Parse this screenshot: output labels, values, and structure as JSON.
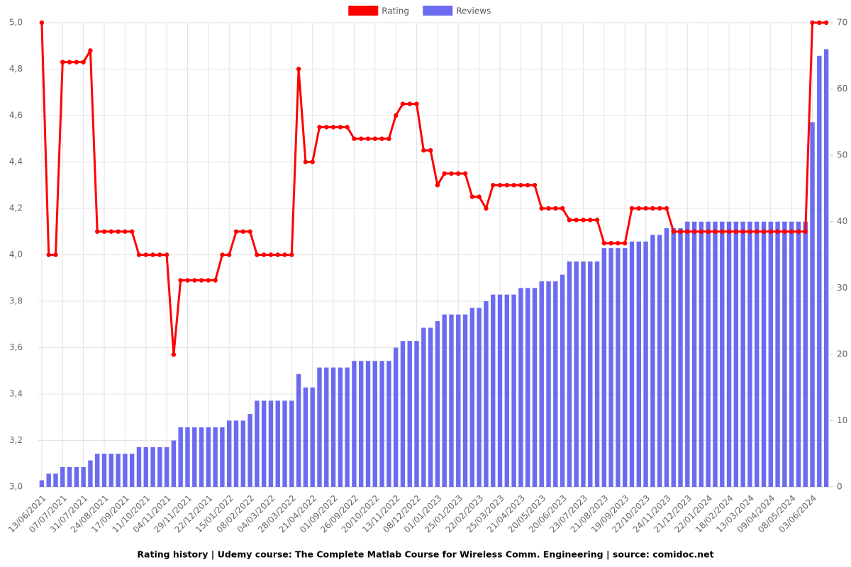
{
  "chart_data": {
    "type": "combo",
    "title": "Rating history | Udemy course: The Complete Matlab Course for Wireless Comm. Engineering | source: comidoc.net",
    "categories": [
      "13/06/2021",
      null,
      null,
      "07/07/2021",
      null,
      null,
      "31/07/2021",
      null,
      null,
      "24/08/2021",
      null,
      null,
      "17/09/2021",
      null,
      null,
      "11/10/2021",
      null,
      null,
      "04/11/2021",
      null,
      null,
      "29/11/2021",
      null,
      null,
      "22/12/2021",
      null,
      null,
      "15/01/2022",
      null,
      null,
      "08/02/2022",
      null,
      null,
      "04/03/2022",
      null,
      null,
      "28/03/2022",
      null,
      null,
      "21/04/2022",
      null,
      null,
      "01/09/2022",
      null,
      null,
      "26/09/2022",
      null,
      null,
      "20/10/2022",
      null,
      null,
      "13/11/2022",
      null,
      null,
      "08/12/2022",
      null,
      null,
      "01/01/2023",
      null,
      null,
      "25/01/2023",
      null,
      null,
      "22/02/2023",
      null,
      null,
      "25/03/2023",
      null,
      null,
      "21/04/2023",
      null,
      null,
      "20/05/2023",
      null,
      null,
      "20/06/2023",
      null,
      null,
      "23/07/2023",
      null,
      null,
      "21/08/2023",
      null,
      null,
      "19/09/2023",
      null,
      null,
      "22/10/2023",
      null,
      null,
      "24/11/2023",
      null,
      null,
      "21/12/2023",
      null,
      null,
      "22/01/2024",
      null,
      null,
      "18/02/2024",
      null,
      null,
      "13/03/2024",
      null,
      null,
      "09/04/2024",
      null,
      null,
      "08/05/2024",
      null,
      null,
      "03/06/2024",
      null,
      null
    ],
    "series": [
      {
        "name": "Rating",
        "type": "line",
        "color": "#ff0000",
        "axis": "y",
        "values": [
          5.0,
          4.0,
          4.0,
          4.83,
          4.83,
          4.83,
          4.83,
          4.88,
          4.1,
          4.1,
          4.1,
          4.1,
          4.1,
          4.1,
          4.0,
          4.0,
          4.0,
          4.0,
          4.0,
          3.57,
          3.89,
          3.89,
          3.89,
          3.89,
          3.89,
          3.89,
          4.0,
          4.0,
          4.1,
          4.1,
          4.1,
          4.0,
          4.0,
          4.0,
          4.0,
          4.0,
          4.0,
          4.8,
          4.4,
          4.4,
          4.55,
          4.55,
          4.55,
          4.55,
          4.55,
          4.5,
          4.5,
          4.5,
          4.5,
          4.5,
          4.5,
          4.6,
          4.65,
          4.65,
          4.65,
          4.45,
          4.45,
          4.3,
          4.35,
          4.35,
          4.35,
          4.35,
          4.25,
          4.25,
          4.2,
          4.3,
          4.3,
          4.3,
          4.3,
          4.3,
          4.3,
          4.3,
          4.2,
          4.2,
          4.2,
          4.2,
          4.15,
          4.15,
          4.15,
          4.15,
          4.15,
          4.05,
          4.05,
          4.05,
          4.05,
          4.2,
          4.2,
          4.2,
          4.2,
          4.2,
          4.2,
          4.1,
          4.1,
          4.1,
          4.1,
          4.1,
          4.1,
          4.1,
          4.1,
          4.1,
          4.1,
          4.1,
          4.1,
          4.1,
          4.1,
          4.1,
          4.1,
          4.1,
          4.1,
          4.1,
          4.1,
          5.0,
          5.0,
          5.0
        ]
      },
      {
        "name": "Reviews",
        "type": "bar",
        "color": "#6b6bf2",
        "axis": "y2",
        "values": [
          1,
          2,
          2,
          3,
          3,
          3,
          3,
          4,
          5,
          5,
          5,
          5,
          5,
          5,
          6,
          6,
          6,
          6,
          6,
          7,
          9,
          9,
          9,
          9,
          9,
          9,
          9,
          10,
          10,
          10,
          11,
          13,
          13,
          13,
          13,
          13,
          13,
          17,
          15,
          15,
          18,
          18,
          18,
          18,
          18,
          19,
          19,
          19,
          19,
          19,
          19,
          21,
          22,
          22,
          22,
          24,
          24,
          25,
          26,
          26,
          26,
          26,
          27,
          27,
          28,
          29,
          29,
          29,
          29,
          30,
          30,
          30,
          31,
          31,
          31,
          32,
          34,
          34,
          34,
          34,
          34,
          36,
          36,
          36,
          36,
          37,
          37,
          37,
          38,
          38,
          39,
          39,
          39,
          40,
          40,
          40,
          40,
          40,
          40,
          40,
          40,
          40,
          40,
          40,
          40,
          40,
          40,
          40,
          40,
          40,
          40,
          55,
          65,
          66
        ]
      }
    ],
    "ylim": [
      3.0,
      5.0
    ],
    "yticks": [
      {
        "value": 3.0,
        "label": "3,0"
      },
      {
        "value": 3.2,
        "label": "3,2"
      },
      {
        "value": 3.4,
        "label": "3,4"
      },
      {
        "value": 3.6,
        "label": "3,6"
      },
      {
        "value": 3.8,
        "label": "3,8"
      },
      {
        "value": 4.0,
        "label": "4,0"
      },
      {
        "value": 4.2,
        "label": "4,2"
      },
      {
        "value": 4.4,
        "label": "4,4"
      },
      {
        "value": 4.6,
        "label": "4,6"
      },
      {
        "value": 4.8,
        "label": "4,8"
      },
      {
        "value": 5.0,
        "label": "5,0"
      }
    ],
    "y2lim": [
      0,
      70
    ],
    "y2ticks": [
      0,
      10,
      20,
      30,
      40,
      50,
      60,
      70
    ],
    "grid": true
  }
}
